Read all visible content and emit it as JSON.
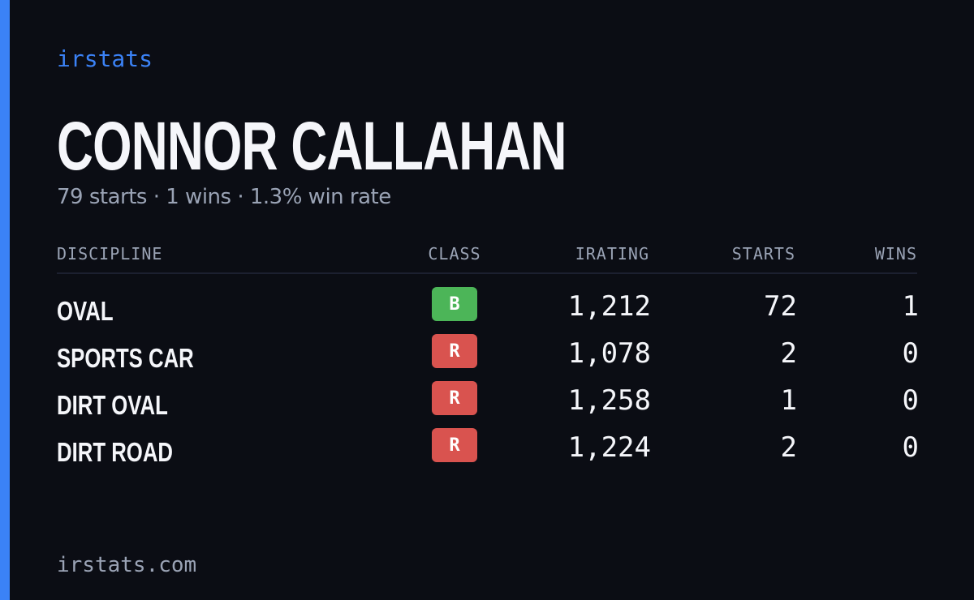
{
  "header": {
    "brand": "irstats",
    "title": "CONNOR CALLAHAN",
    "subtitle": "79 starts · 1 wins · 1.3% win rate"
  },
  "table": {
    "columns": [
      "DISCIPLINE",
      "CLASS",
      "IRATING",
      "STARTS",
      "WINS"
    ],
    "rows": [
      {
        "discipline": "OVAL",
        "class": "B",
        "class_color": "#4cb558",
        "irating": "1,212",
        "starts": "72",
        "wins": "1"
      },
      {
        "discipline": "SPORTS CAR",
        "class": "R",
        "class_color": "#d9534f",
        "irating": "1,078",
        "starts": "2",
        "wins": "0"
      },
      {
        "discipline": "DIRT OVAL",
        "class": "R",
        "class_color": "#d9534f",
        "irating": "1,258",
        "starts": "1",
        "wins": "0"
      },
      {
        "discipline": "DIRT ROAD",
        "class": "R",
        "class_color": "#d9534f",
        "irating": "1,224",
        "starts": "2",
        "wins": "0"
      }
    ]
  },
  "footer": {
    "site": "irstats.com"
  }
}
